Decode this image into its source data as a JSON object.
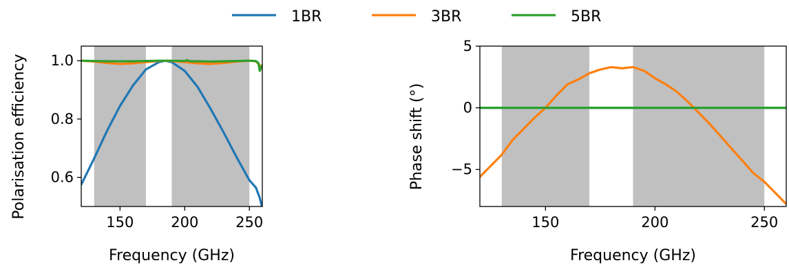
{
  "legend": [
    {
      "name": "1BR",
      "color": "#1f77b4"
    },
    {
      "name": "3BR",
      "color": "#ff7f0e"
    },
    {
      "name": "5BR",
      "color": "#2ca02c"
    }
  ],
  "chart_data": [
    {
      "type": "line",
      "xlabel": "Frequency (GHz)",
      "ylabel": "Polarisation efficiency",
      "xlim": [
        120,
        260
      ],
      "ylim": [
        0.5,
        1.05
      ],
      "xticks": [
        150,
        200,
        250
      ],
      "yticks": [
        0.6,
        0.8,
        1.0
      ],
      "ytick_labels": [
        "0.6",
        "0.8",
        "1.0"
      ],
      "shaded_bands": [
        [
          130,
          170
        ],
        [
          190,
          250
        ]
      ],
      "band_color": "#c0c0c0",
      "series": [
        {
          "name": "1BR",
          "color": "#1f77b4",
          "x": [
            120,
            130,
            140,
            150,
            160,
            170,
            180,
            185,
            190,
            200,
            210,
            220,
            230,
            240,
            250,
            255,
            258,
            260
          ],
          "y": [
            0.575,
            0.665,
            0.76,
            0.845,
            0.915,
            0.97,
            0.995,
            1.0,
            0.995,
            0.965,
            0.91,
            0.835,
            0.755,
            0.67,
            0.59,
            0.565,
            0.53,
            0.495
          ]
        },
        {
          "name": "3BR",
          "color": "#ff7f0e",
          "x": [
            120,
            130,
            140,
            150,
            160,
            170,
            180,
            185,
            190,
            200,
            210,
            220,
            230,
            240,
            250,
            255,
            258,
            260
          ],
          "y": [
            1.0,
            0.997,
            0.992,
            0.989,
            0.991,
            0.995,
            0.999,
            1.0,
            0.999,
            0.995,
            0.991,
            0.989,
            0.992,
            0.997,
            1.0,
            0.998,
            0.985,
            0.975
          ]
        },
        {
          "name": "5BR",
          "color": "#2ca02c",
          "x": [
            120,
            130,
            140,
            150,
            160,
            170,
            180,
            185,
            190,
            200,
            202,
            204,
            210,
            220,
            230,
            240,
            250,
            255,
            257,
            258,
            259,
            260
          ],
          "y": [
            1.0,
            0.999,
            0.998,
            0.998,
            0.998,
            0.999,
            1.0,
            1.0,
            1.0,
            0.999,
            1.002,
            0.998,
            0.998,
            0.997,
            0.998,
            0.999,
            1.0,
            0.999,
            0.992,
            0.965,
            0.975,
            0.985
          ]
        }
      ]
    },
    {
      "type": "line",
      "xlabel": "Frequency (GHz)",
      "ylabel": "Phase shift (°)",
      "xlim": [
        120,
        260
      ],
      "ylim": [
        -8,
        5
      ],
      "xticks": [
        150,
        200,
        250
      ],
      "yticks": [
        -5,
        0,
        5
      ],
      "ytick_labels": [
        "−5",
        "0",
        "5"
      ],
      "shaded_bands": [
        [
          130,
          170
        ],
        [
          190,
          250
        ]
      ],
      "band_color": "#c0c0c0",
      "series": [
        {
          "name": "1BR",
          "color": "#1f77b4",
          "x": [
            120,
            260
          ],
          "y": [
            0,
            0
          ]
        },
        {
          "name": "3BR",
          "color": "#ff7f0e",
          "x": [
            120,
            125,
            130,
            135,
            140,
            145,
            150,
            155,
            160,
            165,
            170,
            175,
            180,
            185,
            190,
            195,
            200,
            205,
            210,
            215,
            220,
            225,
            230,
            235,
            240,
            245,
            250,
            255,
            260
          ],
          "y": [
            -5.6,
            -4.7,
            -3.8,
            -2.6,
            -1.7,
            -0.8,
            0.0,
            1.0,
            1.9,
            2.3,
            2.8,
            3.1,
            3.3,
            3.2,
            3.3,
            3.0,
            2.4,
            1.9,
            1.3,
            0.5,
            -0.4,
            -1.3,
            -2.3,
            -3.3,
            -4.3,
            -5.3,
            -6.0,
            -6.9,
            -7.8
          ]
        },
        {
          "name": "5BR",
          "color": "#2ca02c",
          "x": [
            120,
            260
          ],
          "y": [
            0,
            0
          ]
        }
      ]
    }
  ]
}
